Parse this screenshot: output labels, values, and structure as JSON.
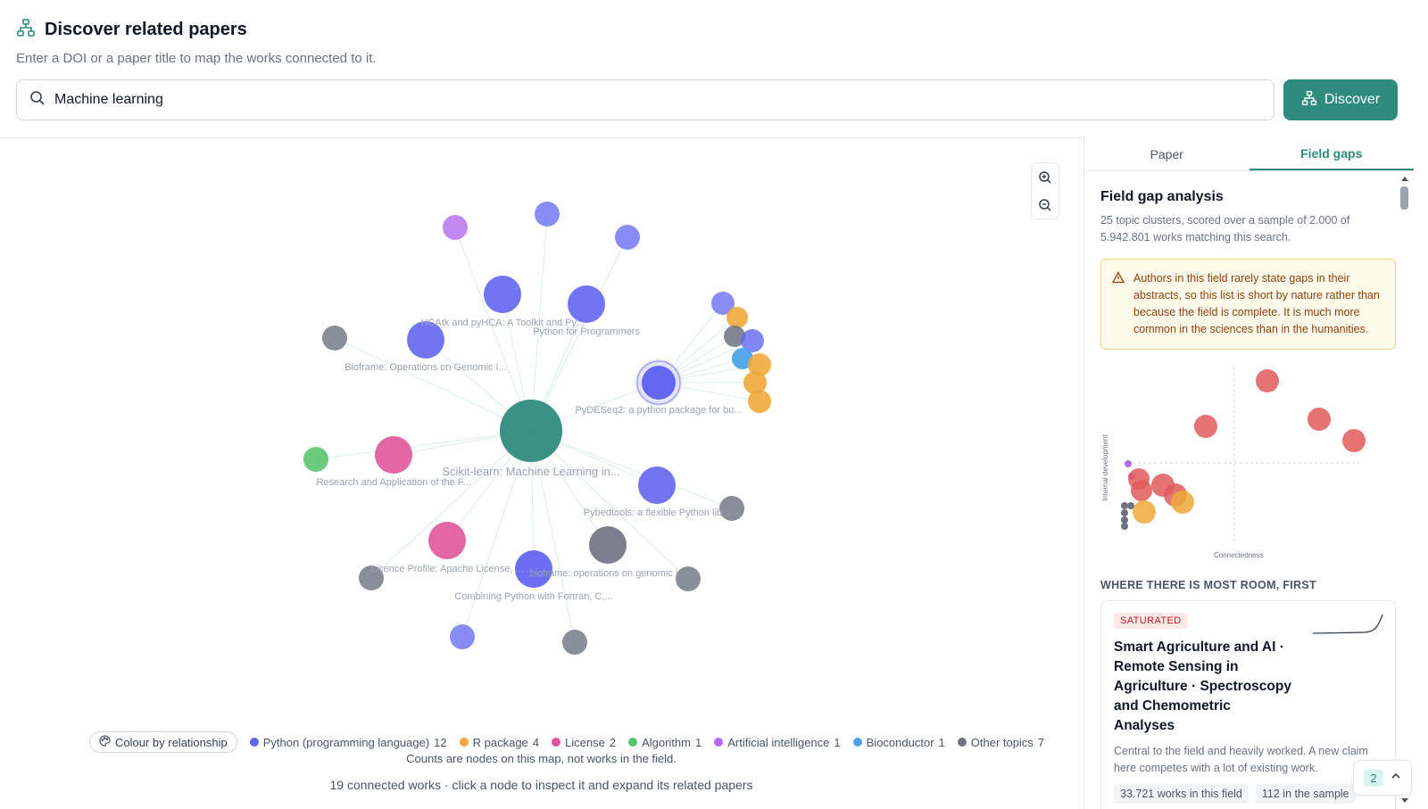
{
  "header": {
    "title": "Discover related papers",
    "subtitle": "Enter a DOI or a paper title to map the works connected to it."
  },
  "search": {
    "value": "Machine learning",
    "button_label": "Discover"
  },
  "colors": {
    "accent": "#2f8b7d",
    "python": "#6366f1",
    "r_package": "#f0a93b",
    "license": "#e0569a",
    "algorithm": "#5bc46e",
    "ai": "#b36cf0",
    "bioconductor": "#4ea3e8",
    "other": "#6b7280"
  },
  "graph": {
    "center_label": "Scikit-learn: Machine Learning in...",
    "node_labels": [
      "HCAtk and pyHCA: A Toolkit and Py...",
      "Python for Programmers",
      "Bioframe: Operations on Genomic I...",
      "PyDESeq2: a python package for bu...",
      "Research and Application of the F...",
      "Pybedtools: a flexible Python lib...",
      "Licence Profile: Apache License, ...",
      "bioframe: operations on genomic i...",
      "Combining Python with Fortran, C,..."
    ]
  },
  "legend": {
    "toggle_label": "Colour by relationship",
    "items": [
      {
        "label": "Python (programming language)",
        "count": "12"
      },
      {
        "label": "R package",
        "count": "4"
      },
      {
        "label": "License",
        "count": "2"
      },
      {
        "label": "Algorithm",
        "count": "1"
      },
      {
        "label": "Artificial intelligence",
        "count": "1"
      },
      {
        "label": "Bioconductor",
        "count": "1"
      },
      {
        "label": "Other topics",
        "count": "7"
      }
    ],
    "note": "Counts are nodes on this map, not works in the field.",
    "status": "19 connected works · click a node to inspect it and expand its related papers"
  },
  "side": {
    "tabs": [
      "Paper",
      "Field gaps"
    ],
    "active_tab": "Field gaps",
    "title": "Field gap analysis",
    "description": "25 topic clusters, scored over a sample of 2.000 of 5.942.801 works matching this search.",
    "warning": "Authors in this field rarely state gaps in their abstracts, so this list is short by nature rather than because the field is complete. It is much more common in the sciences than in the humanities.",
    "scatter": {
      "ylabel": "Internal development",
      "xlabel": "Connectedness"
    },
    "section_label": "WHERE THERE IS MOST ROOM, FIRST",
    "card": {
      "badge": "SATURATED",
      "title": "Smart Agriculture and AI · Remote Sensing in Agriculture · Spectroscopy and Chemometric Analyses",
      "description": "Central to the field and heavily worked. A new claim here competes with a lot of existing work.",
      "chips": [
        "33.721 works in this field",
        "112 in the sample"
      ]
    },
    "pager_count": "2"
  }
}
